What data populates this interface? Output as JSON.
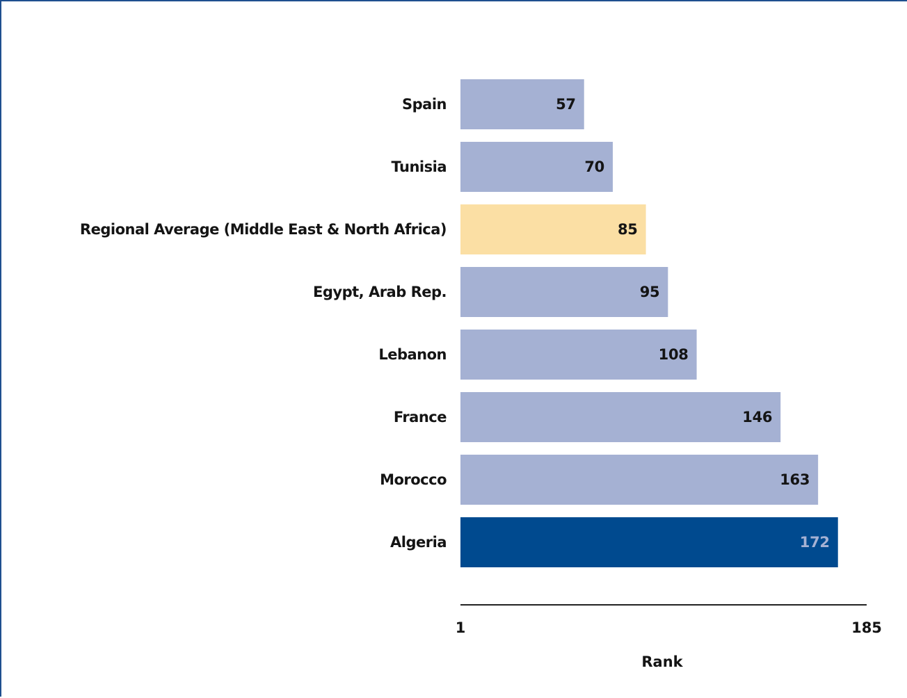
{
  "chart_data": {
    "type": "bar",
    "orientation": "horizontal",
    "categories": [
      "Spain",
      "Tunisia",
      "Regional Average (Middle East & North Africa)",
      "Egypt, Arab Rep.",
      "Lebanon",
      "France",
      "Morocco",
      "Algeria"
    ],
    "values": [
      57,
      70,
      85,
      95,
      108,
      146,
      163,
      172
    ],
    "bar_roles": [
      "comparator",
      "comparator",
      "regional-average",
      "comparator",
      "comparator",
      "comparator",
      "comparator",
      "focus"
    ],
    "colors": {
      "comparator": "#a5b1d3",
      "regional-average": "#fbdfa4",
      "focus": "#004a8f",
      "label_default": "#141414",
      "label_on_focus": "#a5b1d3",
      "frame": "#1f4f8f"
    },
    "xlim": [
      1,
      185
    ],
    "x_ticks": [
      "1",
      "185"
    ],
    "xlabel": "Rank",
    "ylabel": "",
    "title": "",
    "grid": false,
    "legend": "none"
  }
}
